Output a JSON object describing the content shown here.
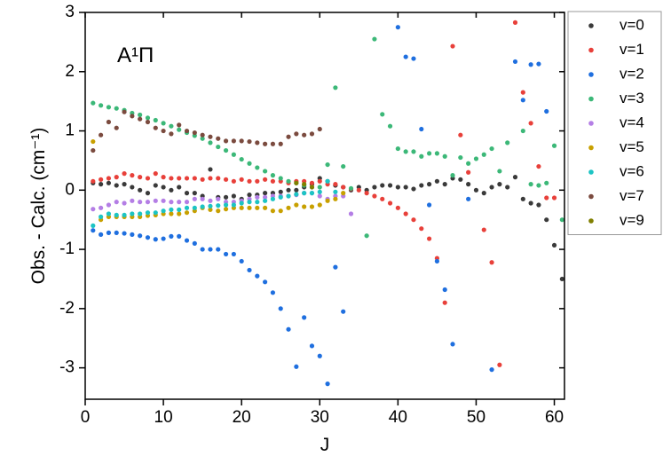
{
  "chart_data": {
    "type": "scatter",
    "annotation": "A¹Π",
    "xlabel": "J",
    "ylabel": "Obs. - Calc. (cm⁻¹)",
    "xlim": [
      0,
      61.3
    ],
    "ylim": [
      -3.53,
      3
    ],
    "xticks": [
      0,
      10,
      20,
      30,
      40,
      50,
      60
    ],
    "yticks": [
      -3,
      -2,
      -1,
      0,
      1,
      2,
      3
    ],
    "legend": "outside-right",
    "series": [
      {
        "name": "v=0",
        "color": "#3a3a3a",
        "x": [
          1,
          2,
          3,
          4,
          5,
          6,
          7,
          8,
          9,
          10,
          11,
          12,
          13,
          14,
          15,
          16,
          17,
          18,
          19,
          20,
          21,
          22,
          23,
          24,
          25,
          26,
          27,
          28,
          29,
          30,
          31,
          32,
          33,
          34,
          35,
          36,
          37,
          38,
          39,
          40,
          41,
          42,
          43,
          44,
          45,
          46,
          47,
          48,
          49,
          50,
          51,
          52,
          53,
          54,
          55,
          56,
          57,
          58,
          59,
          60,
          61
        ],
        "values": [
          0.12,
          0.1,
          0.12,
          0.08,
          0.1,
          0.05,
          0.0,
          -0.05,
          0.08,
          0.05,
          0.0,
          0.05,
          -0.05,
          -0.05,
          -0.1,
          0.35,
          -0.12,
          -0.12,
          -0.1,
          -0.15,
          -0.08,
          -0.08,
          -0.05,
          -0.05,
          -0.03,
          0.0,
          0.0,
          0.05,
          0.1,
          0.2,
          0.15,
          0.08,
          0.05,
          0.0,
          0.05,
          0.0,
          0.05,
          0.08,
          0.08,
          0.05,
          0.05,
          0.02,
          0.08,
          0.1,
          0.15,
          0.1,
          0.2,
          0.18,
          0.1,
          0.0,
          -0.05,
          0.05,
          0.1,
          0.05,
          0.22,
          -0.15,
          -0.22,
          -0.25,
          -0.5,
          -0.93,
          -1.5
        ]
      },
      {
        "name": "v=1",
        "color": "#e8403a",
        "x": [
          1,
          2,
          3,
          4,
          5,
          6,
          7,
          8,
          9,
          10,
          11,
          12,
          13,
          14,
          15,
          16,
          17,
          18,
          19,
          20,
          21,
          22,
          23,
          24,
          25,
          26,
          27,
          28,
          29,
          30,
          31,
          32,
          33,
          34,
          35,
          36,
          37,
          38,
          39,
          40,
          41,
          42,
          43,
          44,
          45,
          46,
          47,
          48,
          49,
          51,
          52,
          53,
          55,
          56,
          57,
          58,
          59,
          60
        ],
        "values": [
          0.15,
          0.18,
          0.2,
          0.22,
          0.28,
          0.25,
          0.22,
          0.2,
          0.28,
          0.22,
          0.2,
          0.2,
          0.2,
          0.2,
          0.18,
          0.2,
          0.2,
          0.18,
          0.15,
          0.18,
          0.15,
          0.15,
          0.18,
          0.15,
          0.15,
          0.12,
          0.15,
          0.15,
          0.12,
          0.15,
          0.1,
          0.1,
          0.05,
          0.02,
          0.0,
          -0.05,
          -0.1,
          -0.15,
          -0.22,
          -0.3,
          -0.4,
          -0.5,
          -0.65,
          -0.82,
          -1.15,
          -1.9,
          2.43,
          0.93,
          0.3,
          -0.67,
          -1.22,
          -2.95,
          2.83,
          1.65,
          1.13,
          0.4,
          -0.13,
          -0.13
        ]
      },
      {
        "name": "v=2",
        "color": "#1f6fdf",
        "x": [
          1,
          2,
          3,
          4,
          5,
          6,
          7,
          8,
          9,
          10,
          11,
          12,
          13,
          14,
          15,
          16,
          17,
          18,
          19,
          20,
          21,
          22,
          23,
          24,
          25,
          26,
          27,
          28,
          29,
          30,
          31,
          32,
          33,
          40,
          41,
          42,
          43,
          44,
          45,
          46,
          47,
          49,
          52,
          55,
          56,
          57,
          58,
          59
        ],
        "values": [
          -0.68,
          -0.75,
          -0.72,
          -0.72,
          -0.73,
          -0.75,
          -0.77,
          -0.8,
          -0.83,
          -0.82,
          -0.78,
          -0.78,
          -0.85,
          -0.9,
          -1.0,
          -1.0,
          -1.0,
          -1.08,
          -1.08,
          -1.2,
          -1.35,
          -1.45,
          -1.55,
          -1.73,
          -2.0,
          -2.35,
          -2.98,
          -2.15,
          -2.63,
          -2.8,
          -3.27,
          -1.3,
          -2.05,
          2.75,
          2.25,
          2.22,
          1.03,
          -0.25,
          -1.2,
          -1.68,
          -2.6,
          -0.15,
          -3.03,
          2.17,
          1.52,
          2.12,
          2.13,
          1.33
        ]
      },
      {
        "name": "v=3",
        "color": "#3cb878",
        "x": [
          1,
          2,
          3,
          4,
          5,
          6,
          7,
          8,
          9,
          10,
          11,
          12,
          13,
          14,
          15,
          16,
          17,
          18,
          19,
          20,
          21,
          22,
          23,
          24,
          25,
          26,
          27,
          28,
          29,
          30,
          31,
          32,
          33,
          34,
          36,
          37,
          38,
          39,
          40,
          41,
          42,
          43,
          44,
          45,
          46,
          47,
          48,
          49,
          50,
          51,
          52,
          53,
          54,
          56,
          57,
          58,
          59,
          60,
          61
        ],
        "values": [
          1.47,
          1.43,
          1.4,
          1.38,
          1.35,
          1.3,
          1.27,
          1.22,
          1.18,
          1.13,
          1.08,
          1.02,
          0.97,
          0.92,
          0.87,
          0.8,
          0.73,
          0.67,
          0.6,
          0.52,
          0.45,
          0.38,
          0.32,
          0.25,
          0.2,
          0.15,
          0.12,
          0.08,
          0.05,
          0.05,
          0.43,
          1.73,
          0.4,
          0.03,
          -0.77,
          2.55,
          1.28,
          1.08,
          0.7,
          0.65,
          0.65,
          0.57,
          0.62,
          0.62,
          0.57,
          0.25,
          0.55,
          0.45,
          0.53,
          0.6,
          0.7,
          0.32,
          0.8,
          1.0,
          0.1,
          0.08,
          0.12,
          0.75,
          -0.5
        ]
      },
      {
        "name": "v=4",
        "color": "#b47ee5",
        "x": [
          1,
          2,
          3,
          4,
          5,
          6,
          7,
          8,
          9,
          10,
          11,
          12,
          13,
          14,
          15,
          16,
          17,
          18,
          19,
          20,
          21,
          22,
          23,
          24,
          25,
          26,
          27,
          28,
          29,
          30,
          31,
          32,
          33,
          34
        ],
        "values": [
          -0.32,
          -0.3,
          -0.25,
          -0.2,
          -0.22,
          -0.18,
          -0.2,
          -0.2,
          -0.18,
          -0.18,
          -0.2,
          -0.2,
          -0.2,
          -0.15,
          -0.15,
          -0.18,
          -0.15,
          -0.2,
          -0.2,
          -0.18,
          -0.15,
          -0.12,
          -0.12,
          -0.1,
          -0.1,
          -0.1,
          -0.08,
          -0.05,
          -0.05,
          -0.1,
          -0.15,
          -0.1,
          -0.1,
          -0.4
        ]
      },
      {
        "name": "v=5",
        "color": "#c8a000",
        "x": [
          1,
          2,
          3,
          4,
          5,
          6,
          7,
          8,
          9,
          10,
          11,
          12,
          13,
          14,
          15,
          16,
          17,
          18,
          19,
          20,
          21,
          22,
          23,
          24,
          25,
          26,
          27,
          28,
          29,
          30,
          31,
          32,
          33
        ],
        "values": [
          0.82,
          -0.5,
          -0.45,
          -0.45,
          -0.45,
          -0.45,
          -0.45,
          -0.43,
          -0.42,
          -0.4,
          -0.4,
          -0.4,
          -0.38,
          -0.35,
          -0.3,
          -0.33,
          -0.35,
          -0.32,
          -0.3,
          -0.3,
          -0.3,
          -0.3,
          -0.3,
          -0.35,
          -0.35,
          -0.3,
          -0.25,
          -0.28,
          -0.28,
          -0.25,
          -0.18,
          -0.15,
          -0.05
        ]
      },
      {
        "name": "v=6",
        "color": "#1cc4c4",
        "x": [
          1,
          2,
          3,
          4,
          5,
          6,
          7,
          8,
          9,
          10,
          11,
          12,
          13,
          14,
          15,
          16,
          17,
          18,
          19,
          20,
          21,
          22,
          23,
          24,
          25,
          26,
          27,
          28,
          29,
          30,
          31,
          32
        ],
        "values": [
          -0.6,
          -0.45,
          -0.4,
          -0.42,
          -0.42,
          -0.4,
          -0.4,
          -0.38,
          -0.38,
          -0.35,
          -0.33,
          -0.33,
          -0.3,
          -0.3,
          -0.28,
          -0.27,
          -0.26,
          -0.25,
          -0.25,
          -0.22,
          -0.2,
          -0.2,
          -0.18,
          -0.15,
          -0.12,
          -0.1,
          -0.07,
          -0.05,
          -0.05,
          -0.03,
          0.15,
          -0.03
        ]
      },
      {
        "name": "v=7",
        "color": "#7b4b3f",
        "x": [
          1,
          2,
          3,
          4,
          5,
          6,
          7,
          8,
          9,
          10,
          11,
          12,
          13,
          14,
          15,
          16,
          17,
          18,
          19,
          20,
          21,
          22,
          23,
          24,
          25,
          26,
          27,
          28,
          29,
          30
        ],
        "values": [
          0.67,
          0.93,
          1.15,
          1.05,
          1.32,
          1.25,
          1.2,
          1.15,
          1.05,
          1.0,
          0.95,
          1.1,
          1.0,
          0.97,
          0.93,
          0.9,
          0.87,
          0.83,
          0.83,
          0.83,
          0.82,
          0.8,
          0.78,
          0.78,
          0.78,
          0.9,
          0.95,
          0.93,
          0.95,
          1.03
        ]
      },
      {
        "name": "v=9",
        "color": "#807f00",
        "x": [
          27,
          28,
          29
        ],
        "values": [
          0.12,
          0.1,
          0.05
        ]
      }
    ]
  }
}
